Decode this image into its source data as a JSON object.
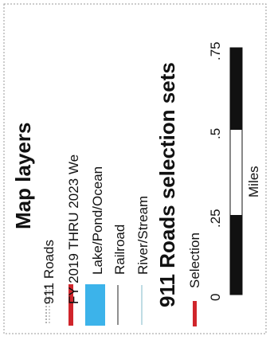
{
  "legend": {
    "title": "Map layers",
    "layers": [
      {
        "label": "911 Roads"
      },
      {
        "label": "FY 2019 THRU 2023 We"
      },
      {
        "label": "Lake/Pond/Ocean"
      },
      {
        "label": "Railroad"
      },
      {
        "label": "River/Stream"
      }
    ],
    "selection_title": "911 Roads selection sets",
    "selections": [
      {
        "label": "Selection"
      }
    ]
  },
  "scale_bar": {
    "labels": [
      "0",
      ".25",
      ".5",
      ".75"
    ],
    "units": "Miles"
  }
}
